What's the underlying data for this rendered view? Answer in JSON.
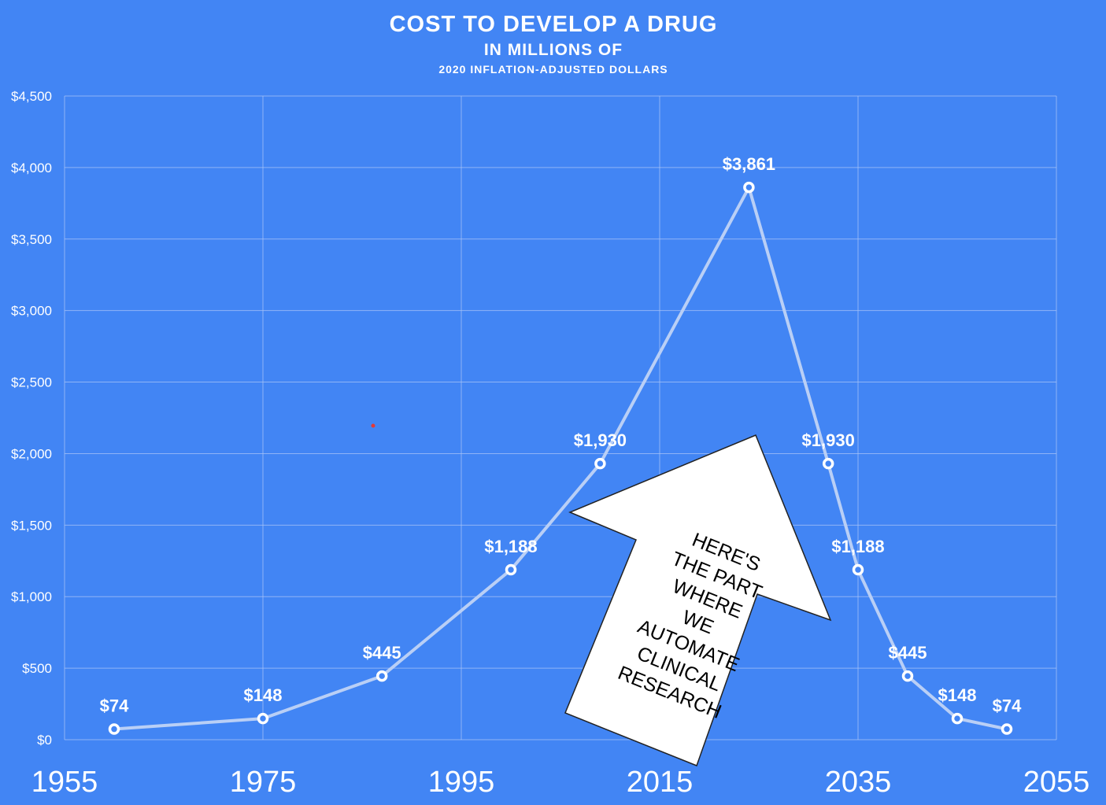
{
  "chart_data": {
    "type": "line",
    "title": "COST TO DEVELOP A DRUG",
    "subtitle": "IN MILLIONS OF",
    "subtitle2": "2020 INFLATION-ADJUSTED DOLLARS",
    "xlabel": "",
    "ylabel": "",
    "xlim": [
      1955,
      2055
    ],
    "ylim": [
      0,
      4500
    ],
    "x_ticks": [
      "1955",
      "1975",
      "1995",
      "2015",
      "2035",
      "2055"
    ],
    "y_ticks": [
      "$0",
      "$500",
      "$1,000",
      "$1,500",
      "$2,000",
      "$2,500",
      "$3,000",
      "$3,500",
      "$4,000",
      "$4,500"
    ],
    "grid": true,
    "series": [
      {
        "x": [
          1960,
          1975,
          1987,
          2000,
          2009,
          2024,
          2032,
          2035,
          2040,
          2045,
          2050
        ],
        "values": [
          74,
          148,
          445,
          1188,
          1930,
          3861,
          1930,
          1188,
          445,
          148,
          74
        ],
        "labels": [
          "$74",
          "$148",
          "$445",
          "$1,188",
          "$1,930",
          "$3,861",
          "$1,930",
          "$1,188",
          "$445",
          "$148",
          "$74"
        ]
      }
    ],
    "annotation": {
      "lines": [
        "HERE'S",
        "THE PART",
        "WHERE",
        "WE",
        "AUTOMATE",
        "CLINICAL",
        "RESEARCH"
      ]
    },
    "colors": {
      "background": "#4285f4",
      "line": "#b9cff6",
      "text": "#ffffff",
      "arrow_fill": "#ffffff"
    }
  }
}
